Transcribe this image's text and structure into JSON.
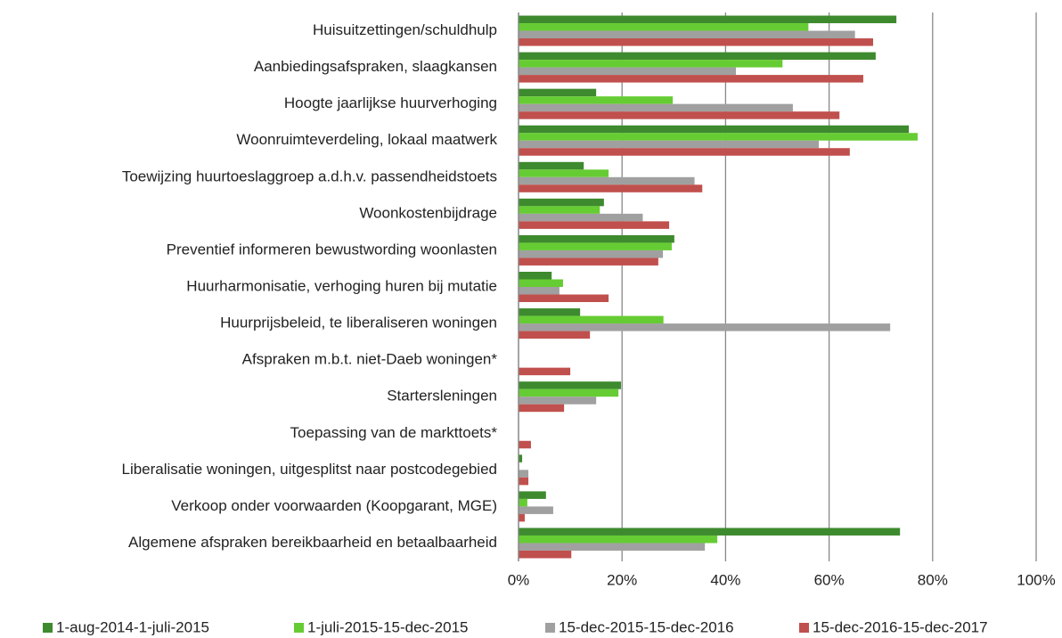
{
  "chart_data": {
    "type": "hbar",
    "categories": [
      "Huisuitzettingen/schuldhulp",
      "Aanbiedingsafspraken, slaagkansen",
      "Hoogte jaarlijkse huurverhoging",
      "Woonruimteverdeling, lokaal maatwerk",
      "Toewijzing huurtoeslaggroep a.d.h.v. passendheidstoets",
      "Woonkostenbijdrage",
      "Preventief informeren bewustwording woonlasten",
      "Huurharmonisatie, verhoging huren bij mutatie",
      "Huurprijsbeleid, te liberaliseren woningen",
      "Afspraken m.b.t. niet-Daeb woningen*",
      "Startersleningen",
      "Toepassing van de markttoets*",
      "Liberalisatie woningen, uitgesplitst naar postcodegebied",
      "Verkoop onder voorwaarden (Koopgarant, MGE)",
      "Algemene afspraken bereikbaarheid en betaalbaarheid"
    ],
    "series": [
      {
        "name": "1-aug-2014-1-juli-2015",
        "color": "#3e8a2e",
        "values": [
          73,
          69,
          15,
          75.4,
          12.6,
          16.5,
          30.1,
          6.4,
          11.9,
          null,
          19.8,
          null,
          0.7,
          5.3,
          73.7
        ]
      },
      {
        "name": "1-juli-2015-15-dec-2015",
        "color": "#66cc33",
        "values": [
          56,
          51,
          29.8,
          77.1,
          17.4,
          15.7,
          29.6,
          8.6,
          28,
          null,
          19.3,
          null,
          null,
          1.7,
          38.4
        ]
      },
      {
        "name": "15-dec-2015-15-dec-2016",
        "color": "#a0a0a0",
        "values": [
          65,
          42,
          53,
          58,
          34,
          24,
          27.9,
          7.9,
          71.8,
          null,
          15,
          null,
          1.9,
          6.7,
          36
        ]
      },
      {
        "name": "15-dec-2016-15-dec-2017",
        "color": "#c0504d",
        "values": [
          68.5,
          66.6,
          62,
          64,
          35.5,
          29.1,
          27,
          17.4,
          13.8,
          10,
          8.8,
          2.4,
          1.9,
          1.2,
          10.2
        ]
      }
    ],
    "xlim": [
      0,
      100
    ],
    "xticks": [
      {
        "value": 0,
        "label": "0%"
      },
      {
        "value": 20,
        "label": "20%"
      },
      {
        "value": 40,
        "label": "40%"
      },
      {
        "value": 60,
        "label": "60%"
      },
      {
        "value": 80,
        "label": "80%"
      },
      {
        "value": 100,
        "label": "100%"
      }
    ],
    "grid": true,
    "legend": "bottom"
  }
}
